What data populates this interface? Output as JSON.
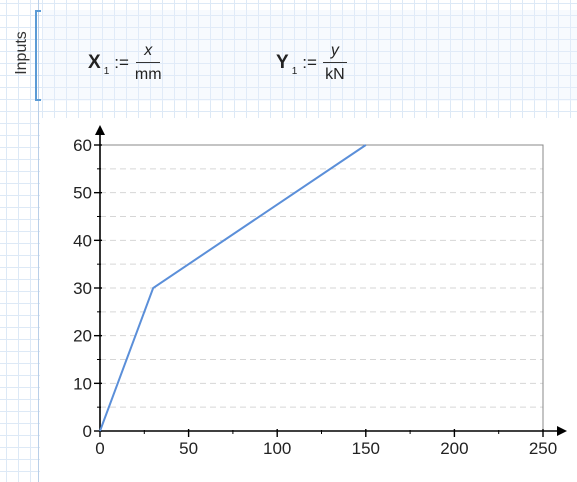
{
  "region": {
    "label": "Inputs"
  },
  "definitions": [
    {
      "var": "X",
      "sub": "1",
      "assign": ":=",
      "num": "x",
      "den": "mm"
    },
    {
      "var": "Y",
      "sub": "1",
      "assign": ":=",
      "num": "y",
      "den": "kN"
    }
  ],
  "chart_data": {
    "type": "line",
    "x": [
      0,
      30,
      150
    ],
    "series": [
      {
        "values": [
          0,
          30,
          60
        ]
      }
    ],
    "xlim": [
      0,
      250
    ],
    "ylim": [
      0,
      60
    ],
    "xticks": [
      0,
      50,
      100,
      150,
      200,
      250
    ],
    "yticks": [
      0,
      10,
      20,
      30,
      40,
      50,
      60
    ],
    "grid": "horizontal-dashed",
    "line_color": "#5b8fd9"
  }
}
